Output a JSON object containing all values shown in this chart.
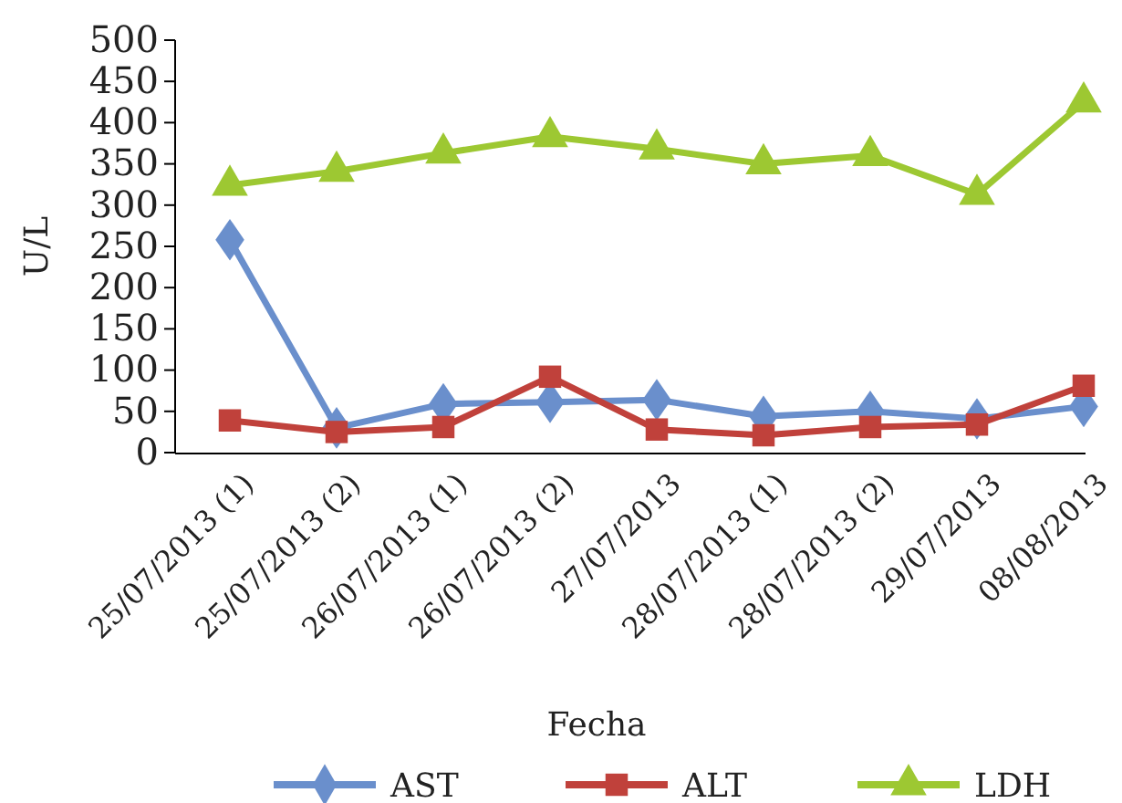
{
  "chart_data": {
    "type": "line",
    "xlabel": "Fecha",
    "ylabel": "U/L",
    "categories": [
      "25/07/2013 (1)",
      "25/07/2013 (2)",
      "26/07/2013 (1)",
      "26/07/2013 (2)",
      "27/07/2013",
      "28/07/2013 (1)",
      "28/07/2013 (2)",
      "29/07/2013",
      "08/08/2013"
    ],
    "series": [
      {
        "name": "AST",
        "color": "#6a8fcc",
        "marker": "diamond",
        "values": [
          258,
          30,
          59,
          61,
          64,
          44,
          50,
          41,
          56
        ]
      },
      {
        "name": "ALT",
        "color": "#c0413b",
        "marker": "square",
        "values": [
          39,
          25,
          31,
          92,
          28,
          21,
          31,
          34,
          81
        ]
      },
      {
        "name": "LDH",
        "color": "#9dc832",
        "marker": "triangle",
        "values": [
          324,
          341,
          363,
          383,
          368,
          350,
          360,
          313,
          425
        ]
      }
    ],
    "ylim": [
      0,
      500
    ],
    "yticks": [
      0,
      50,
      100,
      150,
      200,
      250,
      300,
      350,
      400,
      450,
      500
    ],
    "grid": false,
    "legend": "bottom",
    "line_style": "solid"
  }
}
